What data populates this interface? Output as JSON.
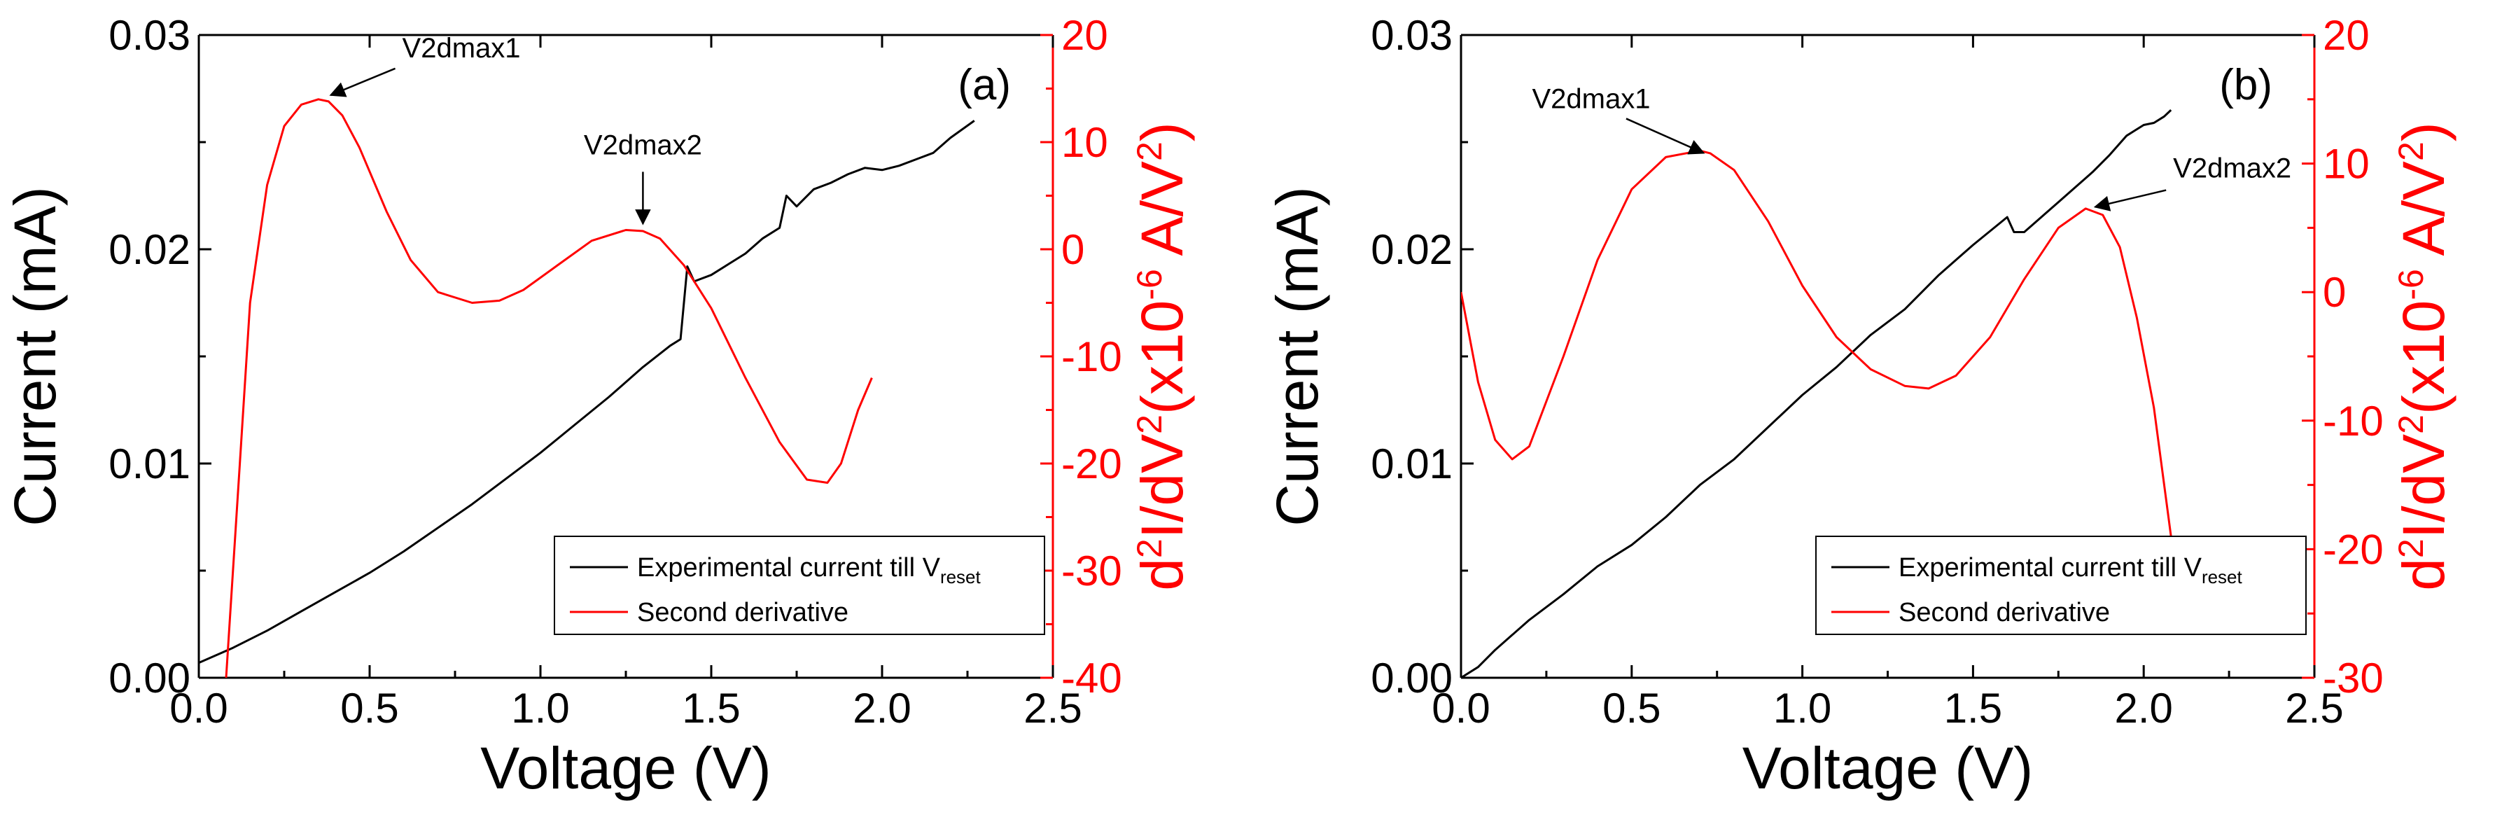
{
  "chart_data": [
    {
      "type": "line",
      "panel_label": "(a)",
      "xlabel": "Voltage (V)",
      "ylabel": "Current (mA)",
      "y2label": {
        "base": "d",
        "sup1": "2",
        "mid": "I/dV",
        "sup2": "2",
        "open": "(x10",
        "exp": "-6",
        "unit": " A/V",
        "sup3": "2",
        "close": ")"
      },
      "xlim": [
        0,
        2.5
      ],
      "ylim": [
        0,
        0.03
      ],
      "y2lim": [
        -40,
        20
      ],
      "xticks": [
        0.0,
        0.5,
        1.0,
        1.5,
        2.0,
        2.5
      ],
      "xtick_labels": [
        "0.0",
        "0.5",
        "1.0",
        "1.5",
        "2.0",
        "2.5"
      ],
      "yticks": [
        0.0,
        0.01,
        0.02,
        0.03
      ],
      "ytick_labels": [
        "0.00",
        "0.01",
        "0.02",
        "0.03"
      ],
      "y2ticks": [
        -40,
        -30,
        -20,
        -10,
        0,
        10,
        20
      ],
      "y2tick_labels": [
        "-40",
        "-30",
        "-20",
        "-10",
        "0",
        "10",
        "20"
      ],
      "legend_position": "bottom-right",
      "series": [
        {
          "name": "Experimental current till V",
          "name_sub": "reset",
          "axis": "left",
          "color": "#000000",
          "x": [
            0.0,
            0.1,
            0.2,
            0.3,
            0.4,
            0.5,
            0.6,
            0.7,
            0.8,
            0.9,
            1.0,
            1.1,
            1.2,
            1.3,
            1.38,
            1.41,
            1.43,
            1.45,
            1.5,
            1.55,
            1.6,
            1.65,
            1.7,
            1.72,
            1.75,
            1.8,
            1.85,
            1.9,
            1.95,
            2.0,
            2.05,
            2.1,
            2.15,
            2.2,
            2.27
          ],
          "y": [
            0.0007,
            0.0014,
            0.0022,
            0.0031,
            0.004,
            0.0049,
            0.0059,
            0.007,
            0.0081,
            0.0093,
            0.0105,
            0.0118,
            0.0131,
            0.0145,
            0.0155,
            0.0158,
            0.0192,
            0.0185,
            0.0188,
            0.0193,
            0.0198,
            0.0205,
            0.021,
            0.0225,
            0.022,
            0.0228,
            0.0231,
            0.0235,
            0.0238,
            0.0237,
            0.0239,
            0.0242,
            0.0245,
            0.0252,
            0.026
          ]
        },
        {
          "name": "Second derivative",
          "axis": "right",
          "color": "#ff0000",
          "x": [
            0.08,
            0.12,
            0.15,
            0.2,
            0.25,
            0.3,
            0.35,
            0.38,
            0.42,
            0.47,
            0.55,
            0.62,
            0.7,
            0.8,
            0.88,
            0.95,
            1.05,
            1.15,
            1.25,
            1.3,
            1.35,
            1.42,
            1.5,
            1.6,
            1.7,
            1.78,
            1.84,
            1.88,
            1.93,
            1.97
          ],
          "y": [
            -40,
            -20,
            -5,
            6,
            11.5,
            13.5,
            14,
            13.8,
            12.5,
            9.5,
            3.5,
            -1,
            -4,
            -5,
            -4.8,
            -3.8,
            -1.5,
            0.8,
            1.8,
            1.7,
            1,
            -1.5,
            -5.5,
            -12,
            -18,
            -21.5,
            -21.8,
            -20,
            -15,
            -12
          ]
        }
      ],
      "annotations": [
        {
          "text": "V2dmax1",
          "x": 0.37,
          "y2": 14
        },
        {
          "text": "V2dmax2",
          "x": 1.3,
          "y2": 2
        }
      ]
    },
    {
      "type": "line",
      "panel_label": "(b)",
      "xlabel": "Voltage (V)",
      "ylabel": "Current (mA)",
      "y2label": {
        "base": "d",
        "sup1": "2",
        "mid": "I/dV",
        "sup2": "2",
        "open": "(x10",
        "exp": "-6",
        "unit": " A/V",
        "sup3": "2",
        "close": ")"
      },
      "xlim": [
        0,
        2.5
      ],
      "ylim": [
        0,
        0.03
      ],
      "y2lim": [
        -30,
        20
      ],
      "xticks": [
        0.0,
        0.5,
        1.0,
        1.5,
        2.0,
        2.5
      ],
      "xtick_labels": [
        "0.0",
        "0.5",
        "1.0",
        "1.5",
        "2.0",
        "2.5"
      ],
      "yticks": [
        0.0,
        0.01,
        0.02,
        0.03
      ],
      "ytick_labels": [
        "0.00",
        "0.01",
        "0.02",
        "0.03"
      ],
      "y2ticks": [
        -30,
        -20,
        -10,
        0,
        10,
        20
      ],
      "y2tick_labels": [
        "-30",
        "-20",
        "-10",
        "0",
        "10",
        "20"
      ],
      "legend_position": "bottom-right",
      "series": [
        {
          "name": "Experimental current till V",
          "name_sub": "reset",
          "axis": "left",
          "color": "#000000",
          "x": [
            0.0,
            0.05,
            0.1,
            0.2,
            0.3,
            0.4,
            0.5,
            0.6,
            0.7,
            0.8,
            0.9,
            1.0,
            1.1,
            1.2,
            1.3,
            1.4,
            1.5,
            1.6,
            1.62,
            1.65,
            1.7,
            1.75,
            1.8,
            1.85,
            1.9,
            1.95,
            2.0,
            2.03,
            2.06,
            2.08
          ],
          "y": [
            0.0,
            0.0005,
            0.0013,
            0.0027,
            0.0039,
            0.0052,
            0.0062,
            0.0075,
            0.009,
            0.0102,
            0.0117,
            0.0132,
            0.0145,
            0.016,
            0.0172,
            0.0188,
            0.0202,
            0.0215,
            0.0208,
            0.0208,
            0.0215,
            0.0222,
            0.0229,
            0.0236,
            0.0244,
            0.0253,
            0.0258,
            0.0259,
            0.0262,
            0.0265
          ]
        },
        {
          "name": "Second derivative",
          "axis": "right",
          "color": "#ff0000",
          "x": [
            0.0,
            0.05,
            0.1,
            0.15,
            0.2,
            0.3,
            0.4,
            0.5,
            0.6,
            0.7,
            0.73,
            0.8,
            0.9,
            1.0,
            1.1,
            1.2,
            1.3,
            1.37,
            1.45,
            1.55,
            1.65,
            1.75,
            1.83,
            1.88,
            1.93,
            1.98,
            2.03,
            2.08
          ],
          "y": [
            0,
            -7,
            -11.5,
            -13,
            -12,
            -5,
            2.5,
            8,
            10.5,
            11,
            10.8,
            9.5,
            5.5,
            0.5,
            -3.5,
            -6,
            -7.3,
            -7.5,
            -6.5,
            -3.5,
            1,
            5,
            6.5,
            6,
            3.5,
            -2,
            -9,
            -19
          ]
        }
      ],
      "annotations": [
        {
          "text": "V2dmax1",
          "x": 0.73,
          "y2": 10.5
        },
        {
          "text": "V2dmax2",
          "x": 1.84,
          "y2": 6.3
        }
      ]
    }
  ]
}
